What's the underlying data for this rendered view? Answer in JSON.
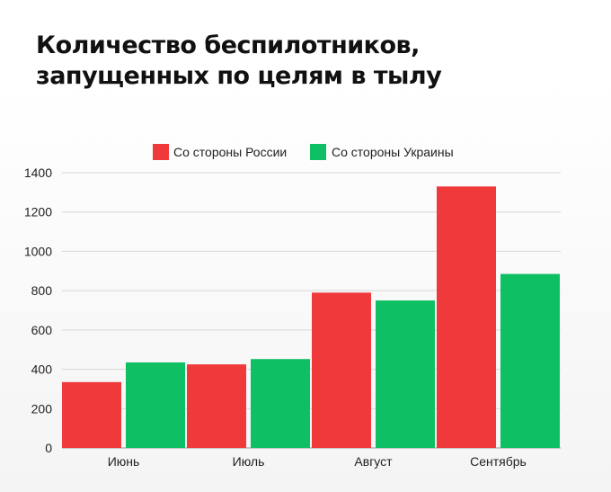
{
  "chart_data": {
    "type": "bar",
    "title": [
      "Количество беспилотников,",
      "запущенных по целям в тылу"
    ],
    "categories": [
      "Июнь",
      "Июль",
      "Август",
      "Сентябрь"
    ],
    "series": [
      {
        "name": "Со стороны России",
        "color": "#f0393b",
        "values": [
          335,
          425,
          790,
          1330
        ]
      },
      {
        "name": "Со стороны Украины",
        "color": "#0ebf64",
        "values": [
          435,
          452,
          750,
          885
        ]
      }
    ],
    "ylim": [
      0,
      1400
    ],
    "yticks": [
      0,
      200,
      400,
      600,
      800,
      1000,
      1200,
      1400
    ],
    "grid": true,
    "legend_position": "top-center"
  }
}
